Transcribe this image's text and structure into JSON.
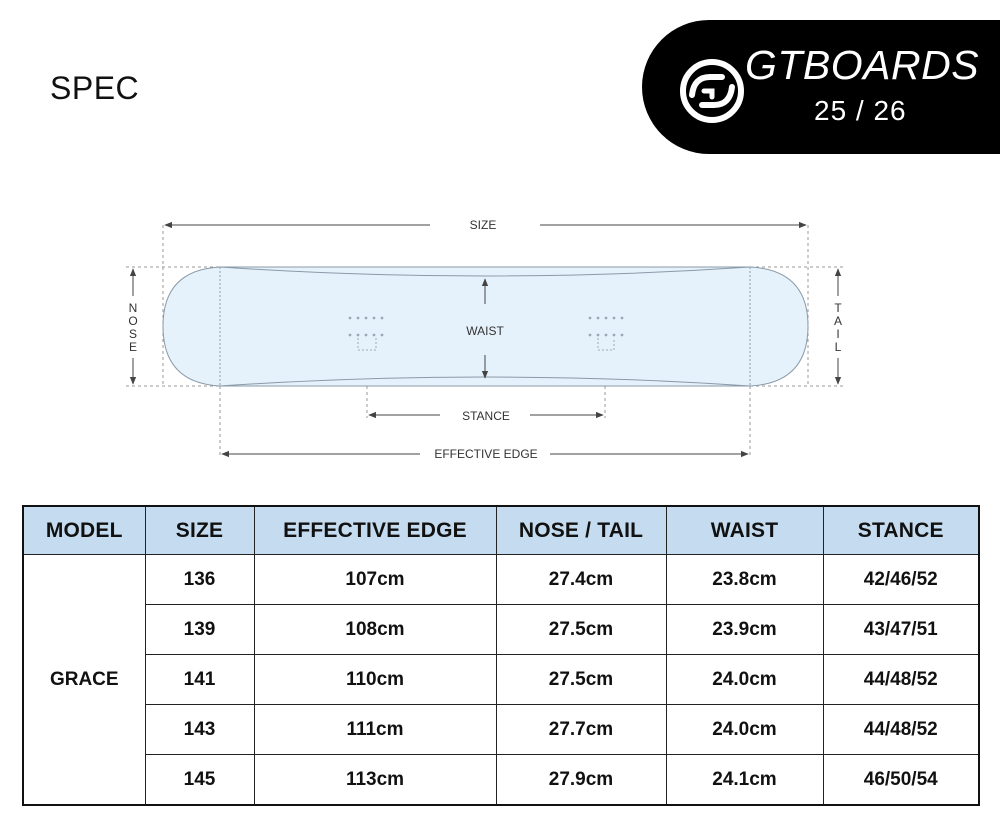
{
  "header": {
    "title": "SPEC"
  },
  "brand": {
    "name": "GTBOARDS",
    "season": "25 / 26",
    "logo_icon": "gtboards-logo-icon",
    "badge_color": "#000000"
  },
  "diagram": {
    "labels": {
      "size": "SIZE",
      "waist": "WAIST",
      "stance": "STANCE",
      "effective_edge": "EFFECTIVE EDGE",
      "nose": [
        "N",
        "O",
        "S",
        "E"
      ],
      "tail": [
        "T",
        "A",
        "I",
        "L"
      ]
    },
    "board_fill": "#e6f2fb"
  },
  "table": {
    "header_color": "#c5dcf0",
    "columns": [
      "MODEL",
      "SIZE",
      "EFFECTIVE EDGE",
      "NOSE / TAIL",
      "WAIST",
      "STANCE"
    ],
    "model": "GRACE",
    "rows": [
      {
        "size": "136",
        "effective_edge": "107cm",
        "nose_tail": "27.4cm",
        "waist": "23.8cm",
        "stance": "42/46/52"
      },
      {
        "size": "139",
        "effective_edge": "108cm",
        "nose_tail": "27.5cm",
        "waist": "23.9cm",
        "stance": "43/47/51"
      },
      {
        "size": "141",
        "effective_edge": "110cm",
        "nose_tail": "27.5cm",
        "waist": "24.0cm",
        "stance": "44/48/52"
      },
      {
        "size": "143",
        "effective_edge": "111cm",
        "nose_tail": "27.7cm",
        "waist": "24.0cm",
        "stance": "44/48/52"
      },
      {
        "size": "145",
        "effective_edge": "113cm",
        "nose_tail": "27.9cm",
        "waist": "24.1cm",
        "stance": "46/50/54"
      }
    ]
  }
}
